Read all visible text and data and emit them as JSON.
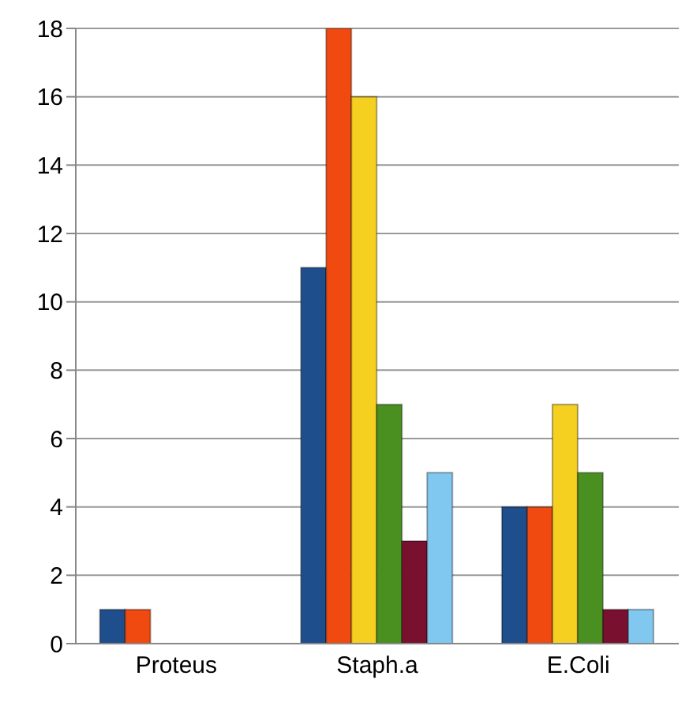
{
  "chart_data": {
    "type": "bar",
    "categories": [
      "Proteus",
      "Staph.a",
      "E.Coli"
    ],
    "series": [
      {
        "color": "#1f4e8c",
        "values": [
          1,
          11,
          4
        ]
      },
      {
        "color": "#f04a10",
        "values": [
          1,
          18,
          4
        ]
      },
      {
        "color": "#f5d020",
        "values": [
          0,
          16,
          7
        ]
      },
      {
        "color": "#4a9020",
        "values": [
          0,
          7,
          5
        ]
      },
      {
        "color": "#7a1030",
        "values": [
          0,
          3,
          1
        ]
      },
      {
        "color": "#80c8f0",
        "values": [
          0,
          5,
          1
        ]
      }
    ],
    "ylim": [
      0,
      18
    ],
    "yticks": [
      0,
      2,
      4,
      6,
      8,
      10,
      12,
      14,
      16,
      18
    ],
    "grid": "y",
    "legend": false
  }
}
